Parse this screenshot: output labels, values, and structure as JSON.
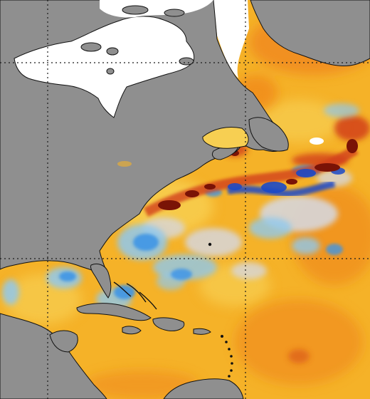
{
  "map": {
    "type": "sea-surface-temperature-anomaly",
    "region": "North Atlantic",
    "colors": {
      "land": "#8f8f8f",
      "ice": "#ffffff",
      "coastline": "#111111",
      "graticule": "#1a1a1a",
      "ocean_base": "#f5b228",
      "warm_light": "#f7cf52",
      "warm_orange": "#f08a1d",
      "warm_red": "#d2401a",
      "warm_dark": "#7a1306",
      "neutral": "#d6d6dc",
      "cool_light": "#8fc8ee",
      "cool_mid": "#3f95e6",
      "cool_dark": "#1b49c8"
    }
  }
}
